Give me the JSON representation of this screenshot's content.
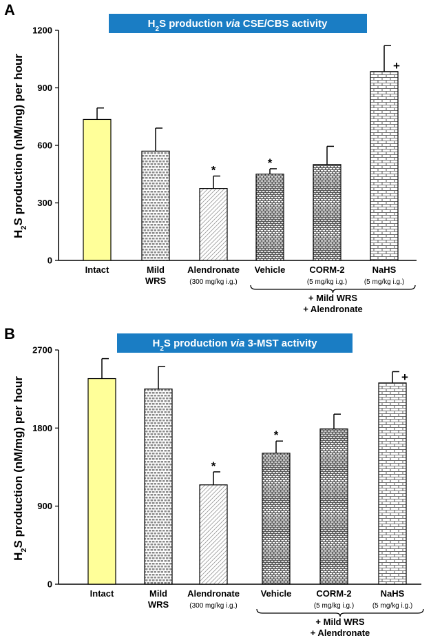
{
  "colors": {
    "title_bg": "#1a7dc4",
    "title_text": "#ffffff",
    "intact_fill": "#ffff99",
    "axis": "#000000"
  },
  "chart_data": [
    {
      "type": "bar",
      "panel": "A",
      "title_parts": [
        "H",
        "2",
        "S production ",
        "via",
        " CSE/CBS activity"
      ],
      "ylabel_parts": [
        "H",
        "2",
        "S production (nM/mg) per hour"
      ],
      "ylim": [
        0,
        1200
      ],
      "yticks": [
        "0",
        "300",
        "600",
        "900",
        "1200"
      ],
      "ytick_values": [
        0,
        300,
        600,
        900,
        1200
      ],
      "categories": [
        "Intact",
        "Mild WRS",
        "Alendronate",
        "Vehicle",
        "CORM-2",
        "NaHS"
      ],
      "category_lines": [
        [
          "Intact"
        ],
        [
          "Mild",
          "WRS"
        ],
        [
          "Alendronate"
        ],
        [
          "Vehicle"
        ],
        [
          "CORM-2"
        ],
        [
          "NaHS"
        ]
      ],
      "dose_labels": [
        "",
        "",
        "(300 mg/kg i.g.)",
        "",
        "(5 mg/kg i.g.)",
        "(5 mg/kg i.g.)"
      ],
      "values": [
        735,
        570,
        375,
        450,
        500,
        985
      ],
      "errors": [
        60,
        120,
        65,
        28,
        95,
        135
      ],
      "patterns": [
        "solid",
        "brick-small",
        "diagonal",
        "brick-dense",
        "brick-dense",
        "brick-large"
      ],
      "marks": [
        "",
        "",
        "*",
        "*",
        "",
        "+"
      ],
      "group_label": [
        "+ Mild WRS",
        "+ Alendronate"
      ]
    },
    {
      "type": "bar",
      "panel": "B",
      "title_parts": [
        "H",
        "2",
        "S production ",
        "via",
        " 3-MST activity"
      ],
      "ylabel_parts": [
        "H",
        "2",
        "S production (nM/mg) per hour"
      ],
      "ylim": [
        0,
        2700
      ],
      "yticks": [
        "0",
        "900",
        "1800",
        "2700"
      ],
      "ytick_values": [
        0,
        900,
        1800,
        2700
      ],
      "categories": [
        "Intact",
        "Mild WRS",
        "Alendronate",
        "Vehicle",
        "CORM-2",
        "NaHS"
      ],
      "category_lines": [
        [
          "Intact"
        ],
        [
          "Mild",
          "WRS"
        ],
        [
          "Alendronate"
        ],
        [
          "Vehicle"
        ],
        [
          "CORM-2"
        ],
        [
          "NaHS"
        ]
      ],
      "dose_labels": [
        "",
        "",
        "(300 mg/kg i.g.)",
        "",
        "(5 mg/kg i.g.)",
        "(5 mg/kg i.g.)"
      ],
      "values": [
        2370,
        2250,
        1145,
        1510,
        1790,
        2320
      ],
      "errors": [
        230,
        260,
        150,
        140,
        170,
        130
      ],
      "patterns": [
        "solid",
        "brick-small",
        "diagonal",
        "brick-dense",
        "brick-dense",
        "brick-large"
      ],
      "marks": [
        "",
        "",
        "*",
        "*",
        "",
        "+"
      ],
      "group_label": [
        "+ Mild WRS",
        "+ Alendronate"
      ]
    }
  ]
}
